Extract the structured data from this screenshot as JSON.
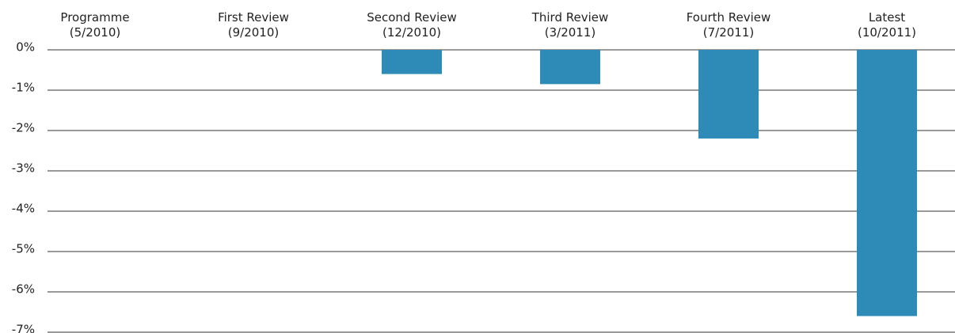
{
  "chart_data": {
    "type": "bar",
    "categories": [
      "Programme\n(5/2010)",
      "First Review\n(9/2010)",
      "Second Review\n(12/2010)",
      "Third Review\n(3/2011)",
      "Fourth Review\n(7/2011)",
      "Latest\n(10/2011)"
    ],
    "values": [
      0,
      0,
      -0.6,
      -0.85,
      -2.2,
      -6.6
    ],
    "color": "#2e8bb8",
    "ylim": [
      -7,
      0
    ],
    "yticks": [
      {
        "value": 0,
        "label": "0%"
      },
      {
        "value": -1,
        "label": "-1%"
      },
      {
        "value": -2,
        "label": "-2%"
      },
      {
        "value": -3,
        "label": "-3%"
      },
      {
        "value": -4,
        "label": "-4%"
      },
      {
        "value": -5,
        "label": "-5%"
      },
      {
        "value": -6,
        "label": "-6%"
      },
      {
        "value": -7,
        "label": "-7%"
      }
    ],
    "grid": true
  }
}
